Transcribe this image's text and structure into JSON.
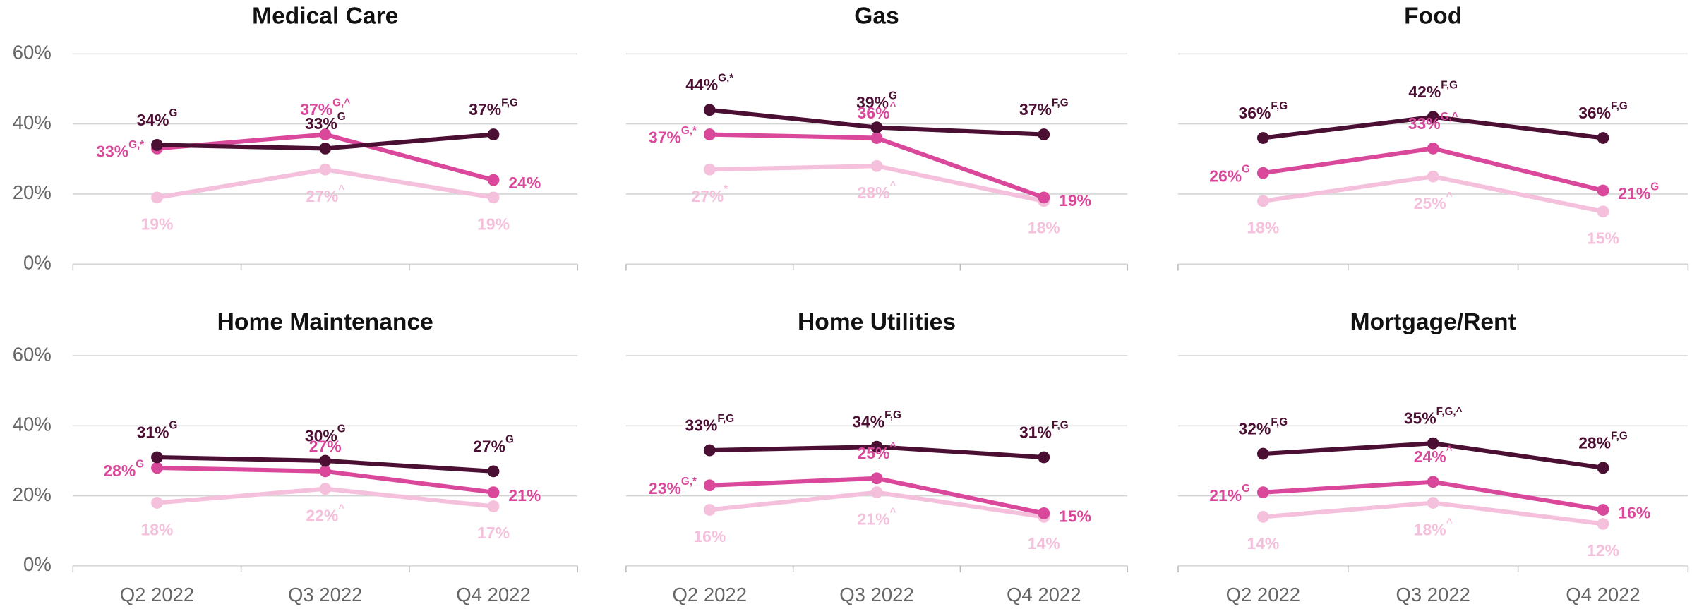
{
  "axes": {
    "categories": [
      "Q2 2022",
      "Q3 2022",
      "Q4 2022"
    ],
    "ylim": [
      0,
      60
    ],
    "yticks": [
      {
        "value": 0,
        "label": "0%"
      },
      {
        "value": 20,
        "label": "20%"
      },
      {
        "value": 40,
        "label": "40%"
      },
      {
        "value": 60,
        "label": "60%"
      }
    ]
  },
  "chart_data": [
    {
      "type": "line",
      "title": "Medical Care",
      "series": [
        {
          "color": "#4a0f33",
          "values": [
            34,
            33,
            37
          ],
          "value_labels": [
            "34%",
            "33%",
            "37%"
          ],
          "value_sups": [
            "G",
            "G",
            "F,G"
          ]
        },
        {
          "color": "#d9489b",
          "values": [
            33,
            37,
            24
          ],
          "value_labels": [
            "33%",
            "37%",
            "24%"
          ],
          "value_sups": [
            "G,*",
            "G,^",
            null
          ]
        },
        {
          "color": "#f4c0dc",
          "values": [
            19,
            27,
            19
          ],
          "value_labels": [
            "19%",
            "27%",
            "19%"
          ],
          "value_sups": [
            null,
            "^",
            null
          ]
        }
      ]
    },
    {
      "type": "line",
      "title": "Gas",
      "series": [
        {
          "color": "#4a0f33",
          "values": [
            44,
            39,
            37
          ],
          "value_labels": [
            "44%",
            "39%",
            "37%"
          ],
          "value_sups": [
            "G,*",
            "G",
            "F,G"
          ]
        },
        {
          "color": "#d9489b",
          "values": [
            37,
            36,
            19
          ],
          "value_labels": [
            "37%",
            "36%",
            "19%"
          ],
          "value_sups": [
            "G,*",
            "^",
            null
          ]
        },
        {
          "color": "#f4c0dc",
          "values": [
            27,
            28,
            18
          ],
          "value_labels": [
            "27%",
            "28%",
            "18%"
          ],
          "value_sups": [
            "*",
            "^",
            null
          ]
        }
      ]
    },
    {
      "type": "line",
      "title": "Food",
      "series": [
        {
          "color": "#4a0f33",
          "values": [
            36,
            42,
            36
          ],
          "value_labels": [
            "36%",
            "42%",
            "36%"
          ],
          "value_sups": [
            "F,G",
            "F,G",
            "F,G"
          ]
        },
        {
          "color": "#d9489b",
          "values": [
            26,
            33,
            21
          ],
          "value_labels": [
            "26%",
            "33%",
            "21%"
          ],
          "value_sups": [
            "G",
            "G,^",
            "G"
          ]
        },
        {
          "color": "#f4c0dc",
          "values": [
            18,
            25,
            15
          ],
          "value_labels": [
            "18%",
            "25%",
            "15%"
          ],
          "value_sups": [
            null,
            "^",
            null
          ]
        }
      ]
    },
    {
      "type": "line",
      "title": "Home Maintenance",
      "series": [
        {
          "color": "#4a0f33",
          "values": [
            31,
            30,
            27
          ],
          "value_labels": [
            "31%",
            "30%",
            "27%"
          ],
          "value_sups": [
            "G",
            "G",
            "G"
          ]
        },
        {
          "color": "#d9489b",
          "values": [
            28,
            27,
            21
          ],
          "value_labels": [
            "28%",
            "27%",
            "21%"
          ],
          "value_sups": [
            "G",
            null,
            null
          ]
        },
        {
          "color": "#f4c0dc",
          "values": [
            18,
            22,
            17
          ],
          "value_labels": [
            "18%",
            "22%",
            "17%"
          ],
          "value_sups": [
            null,
            "^",
            null
          ]
        }
      ]
    },
    {
      "type": "line",
      "title": "Home Utilities",
      "series": [
        {
          "color": "#4a0f33",
          "values": [
            33,
            34,
            31
          ],
          "value_labels": [
            "33%",
            "34%",
            "31%"
          ],
          "value_sups": [
            "F,G",
            "F,G",
            "F,G"
          ]
        },
        {
          "color": "#d9489b",
          "values": [
            23,
            25,
            15
          ],
          "value_labels": [
            "23%",
            "25%",
            "15%"
          ],
          "value_sups": [
            "G,*",
            "^",
            null
          ]
        },
        {
          "color": "#f4c0dc",
          "values": [
            16,
            21,
            14
          ],
          "value_labels": [
            "16%",
            "21%",
            "14%"
          ],
          "value_sups": [
            null,
            "^",
            null
          ]
        }
      ]
    },
    {
      "type": "line",
      "title": "Mortgage/Rent",
      "series": [
        {
          "color": "#4a0f33",
          "values": [
            32,
            35,
            28
          ],
          "value_labels": [
            "32%",
            "35%",
            "28%"
          ],
          "value_sups": [
            "F,G",
            "F,G,^",
            "F,G"
          ]
        },
        {
          "color": "#d9489b",
          "values": [
            21,
            24,
            16
          ],
          "value_labels": [
            "21%",
            "24%",
            "16%"
          ],
          "value_sups": [
            "G",
            "^",
            null
          ]
        },
        {
          "color": "#f4c0dc",
          "values": [
            14,
            18,
            12
          ],
          "value_labels": [
            "14%",
            "18%",
            "12%"
          ],
          "value_sups": [
            null,
            "^",
            null
          ]
        }
      ]
    }
  ]
}
